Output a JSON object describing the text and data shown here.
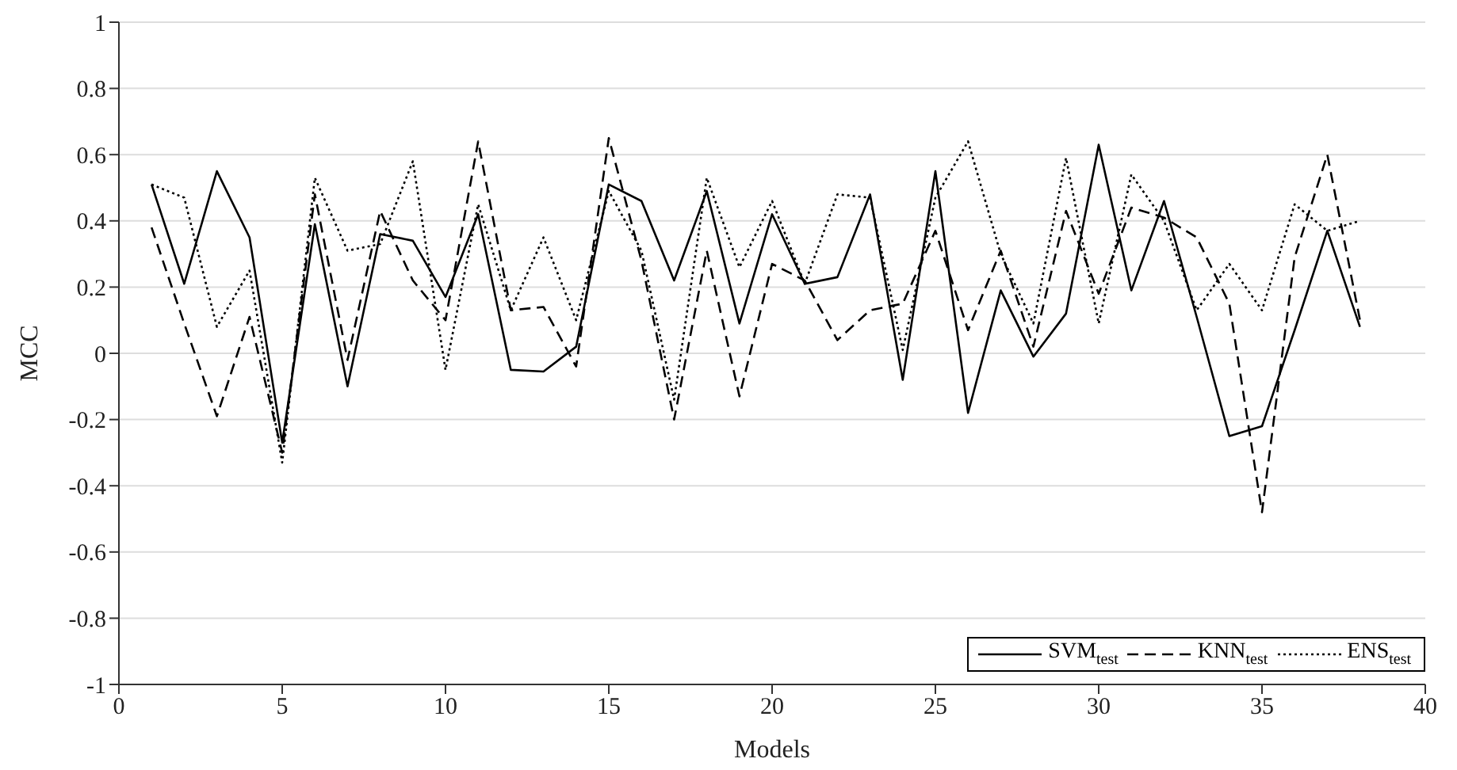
{
  "chart_data": {
    "type": "line",
    "xlabel": "Models",
    "ylabel": "MCC",
    "x": [
      1,
      2,
      3,
      4,
      5,
      6,
      7,
      8,
      9,
      10,
      11,
      12,
      13,
      14,
      15,
      16,
      17,
      18,
      19,
      20,
      21,
      22,
      23,
      24,
      25,
      26,
      27,
      28,
      29,
      30,
      31,
      32,
      33,
      34,
      35,
      36,
      37,
      38
    ],
    "series": [
      {
        "name": "SVM$_{test}$",
        "color": "#000000",
        "line_style": "solid",
        "values": [
          0.51,
          0.21,
          0.55,
          0.35,
          -0.27,
          0.39,
          -0.1,
          0.36,
          0.34,
          0.17,
          0.42,
          -0.05,
          -0.055,
          0.02,
          0.51,
          0.46,
          0.22,
          0.49,
          0.09,
          0.42,
          0.21,
          0.23,
          0.48,
          -0.08,
          0.55,
          -0.18,
          0.19,
          -0.01,
          0.12,
          0.63,
          0.19,
          0.46,
          0.11,
          -0.25,
          -0.22,
          0.07,
          0.37,
          0.08
        ]
      },
      {
        "name": "KNN$_{test}$",
        "color": "#000000",
        "line_style": "dashed",
        "values": [
          0.38,
          0.09,
          -0.19,
          0.11,
          -0.3,
          0.48,
          -0.02,
          0.43,
          0.22,
          0.1,
          0.64,
          0.13,
          0.14,
          -0.04,
          0.65,
          0.28,
          -0.2,
          0.31,
          -0.13,
          0.27,
          0.22,
          0.04,
          0.13,
          0.15,
          0.37,
          0.07,
          0.31,
          0.02,
          0.43,
          0.18,
          0.44,
          0.41,
          0.35,
          0.15,
          -0.48,
          0.29,
          0.6,
          0.1
        ]
      },
      {
        "name": "ENS$_{test}$",
        "color": "#000000",
        "line_style": "dotted",
        "values": [
          0.51,
          0.47,
          0.08,
          0.25,
          -0.33,
          0.53,
          0.31,
          0.33,
          0.58,
          -0.05,
          0.45,
          0.13,
          0.35,
          0.1,
          0.49,
          0.31,
          -0.14,
          0.53,
          0.26,
          0.46,
          0.21,
          0.48,
          0.47,
          0.01,
          0.47,
          0.64,
          0.3,
          0.09,
          0.59,
          0.09,
          0.54,
          0.4,
          0.13,
          0.27,
          0.13,
          0.45,
          0.37,
          0.4
        ]
      }
    ],
    "xlim": [
      0,
      40
    ],
    "xticks": [
      0,
      5,
      10,
      15,
      20,
      25,
      30,
      35,
      40
    ],
    "ylim": [
      -1,
      1
    ],
    "yticks": [
      -1,
      -0.8,
      -0.6,
      -0.4,
      -0.2,
      0,
      0.2,
      0.4,
      0.6,
      0.8,
      1
    ],
    "grid": "y",
    "legend": "bottom right"
  }
}
